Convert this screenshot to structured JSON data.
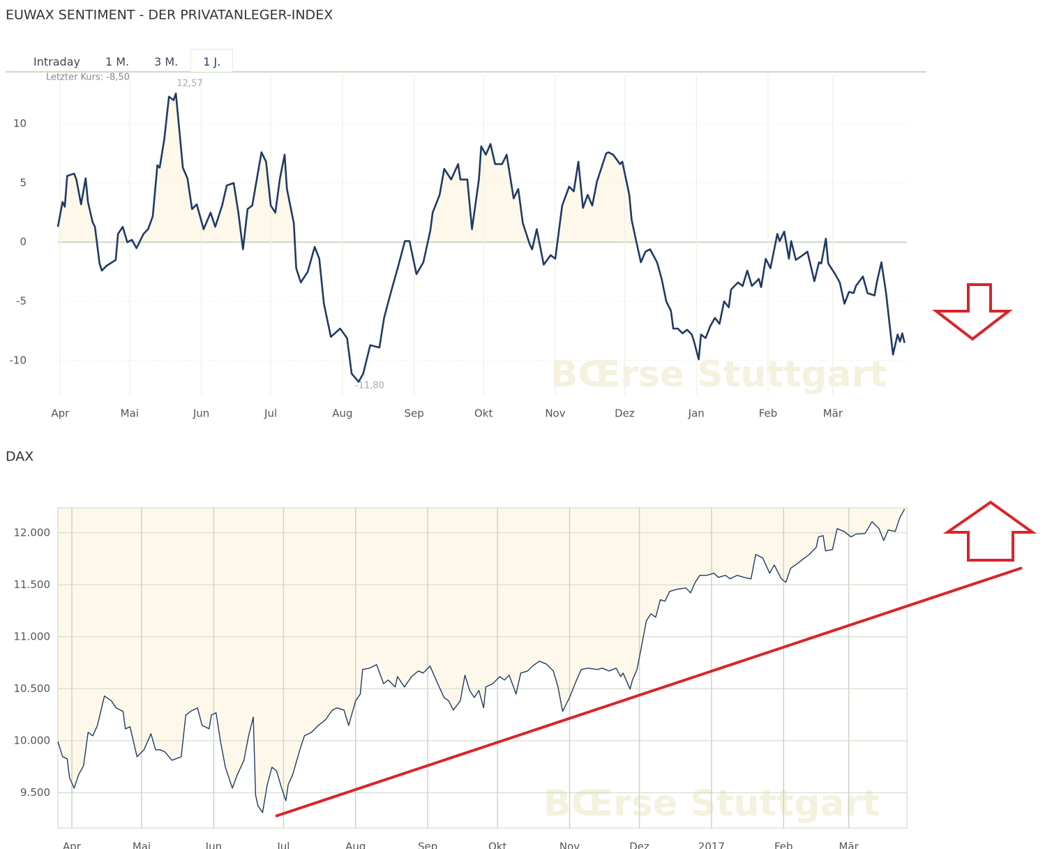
{
  "tabs": [
    "Intraday",
    "1 M.",
    "3 M.",
    "1 J."
  ],
  "watermark": "BŒrse Stuttgart",
  "chart_data": [
    {
      "type": "line",
      "title": "EUWAX SENTIMENT - DER PRIVATANLEGER-INDEX",
      "annotations": [
        "Letzter Kurs: -8,50",
        "12,57",
        "-11,80"
      ],
      "color": "#1f3a64",
      "fill_color": "#fdf8ea",
      "x": [
        -1,
        1,
        2,
        3,
        6,
        7,
        9,
        11,
        12,
        14,
        15,
        17,
        18,
        20,
        24,
        25,
        27,
        29,
        31,
        33,
        36,
        38,
        40,
        42,
        43,
        45,
        47,
        49,
        50,
        52,
        53,
        55,
        57,
        59,
        62,
        65,
        67,
        70,
        72,
        75,
        77,
        79,
        81,
        83,
        87,
        89,
        91,
        93,
        95,
        97,
        98,
        101,
        102,
        104,
        107,
        110,
        112,
        114,
        117,
        121,
        124,
        126,
        129,
        131,
        134,
        138,
        140,
        143,
        146,
        149,
        151,
        154,
        157,
        160,
        161,
        164,
        166,
        169,
        172,
        173,
        176,
        178,
        181,
        182,
        184,
        186,
        188,
        191,
        193,
        196,
        198,
        200,
        203,
        204,
        206,
        209,
        212,
        214,
        217,
        220,
        222,
        224,
        226,
        228,
        230,
        232,
        236,
        237,
        239,
        242,
        243,
        246,
        247,
        249,
        251,
        253,
        255,
        258,
        260,
        262,
        264,
        265,
        267,
        269,
        271,
        273,
        274,
        276,
        277,
        279,
        281,
        283,
        285,
        287,
        289,
        290,
        293,
        295,
        297,
        299,
        302,
        303,
        305,
        307,
        310,
        311,
        313,
        315,
        316,
        318,
        321,
        323,
        326,
        328,
        329,
        331,
        332,
        335,
        337,
        339,
        341,
        343,
        344,
        347,
        349,
        352,
        353,
        355,
        357,
        360,
        362,
        363,
        364,
        365
      ],
      "values": [
        1.3,
        3.4,
        3.0,
        5.6,
        5.8,
        5.3,
        3.2,
        5.4,
        3.4,
        1.7,
        1.3,
        -1.8,
        -2.4,
        -2.0,
        -1.5,
        0.7,
        1.3,
        0.0,
        0.2,
        -0.5,
        0.7,
        1.1,
        2.2,
        6.5,
        6.3,
        8.7,
        12.3,
        12.0,
        12.57,
        8.4,
        6.3,
        5.4,
        2.8,
        3.2,
        1.1,
        2.5,
        1.3,
        3.1,
        4.8,
        5.0,
        2.5,
        -0.6,
        2.8,
        3.1,
        7.6,
        6.8,
        3.1,
        2.5,
        5.4,
        7.4,
        4.5,
        1.6,
        -2.2,
        -3.4,
        -2.5,
        -0.4,
        -1.4,
        -5.2,
        -8.0,
        -7.3,
        -8.1,
        -11.1,
        -11.8,
        -11.1,
        -8.7,
        -8.9,
        -6.4,
        -4.2,
        -2.1,
        0.1,
        0.1,
        -2.7,
        -1.7,
        1.0,
        2.5,
        4.0,
        6.2,
        5.3,
        6.6,
        5.3,
        5.3,
        1.1,
        5.3,
        8.1,
        7.4,
        8.3,
        6.6,
        6.6,
        7.4,
        3.7,
        4.5,
        1.6,
        -0.2,
        -0.6,
        1.1,
        -1.9,
        -1.1,
        -1.4,
        3.1,
        4.7,
        4.3,
        6.8,
        2.9,
        4.0,
        3.1,
        5.1,
        7.5,
        7.6,
        7.4,
        6.6,
        6.8,
        4.0,
        1.9,
        0.1,
        -1.7,
        -0.8,
        -0.6,
        -1.7,
        -3.1,
        -5.0,
        -5.8,
        -7.3,
        -7.3,
        -7.7,
        -7.4,
        -7.8,
        -8.4,
        -9.9,
        -7.8,
        -8.1,
        -7.1,
        -6.4,
        -6.9,
        -5.0,
        -5.5,
        -4.0,
        -3.4,
        -3.7,
        -2.4,
        -3.7,
        -3.1,
        -3.8,
        -1.4,
        -2.2,
        0.7,
        0.1,
        0.9,
        -1.4,
        0.1,
        -1.5,
        -1.1,
        -0.8,
        -3.3,
        -1.7,
        -1.8,
        0.3,
        -1.8,
        -2.7,
        -3.4,
        -5.2,
        -4.2,
        -4.3,
        -3.7,
        -2.9,
        -4.3,
        -4.5,
        -3.4,
        -1.7,
        -4.3,
        -9.5,
        -7.8,
        -8.4,
        -7.7,
        -8.5
      ],
      "xlim": [
        -1,
        366
      ],
      "xticks": [
        {
          "value": 0,
          "label": "Apr"
        },
        {
          "value": 30,
          "label": "Mai"
        },
        {
          "value": 61,
          "label": "Jun"
        },
        {
          "value": 91,
          "label": "Jul"
        },
        {
          "value": 122,
          "label": "Aug"
        },
        {
          "value": 153,
          "label": "Sep"
        },
        {
          "value": 183,
          "label": "Okt"
        },
        {
          "value": 214,
          "label": "Nov"
        },
        {
          "value": 244,
          "label": "Dez"
        },
        {
          "value": 275,
          "label": "Jan"
        },
        {
          "value": 306,
          "label": "Feb"
        },
        {
          "value": 334,
          "label": "Mär"
        }
      ],
      "ylim": [
        -12.9,
        14.1
      ],
      "yticks": [
        -10,
        -5,
        0,
        5,
        10
      ],
      "grid": true
    },
    {
      "type": "line",
      "title": "DAX",
      "color": "#1f3a64",
      "fill_color": "#fdf8ea",
      "x": [
        -6,
        -4,
        -2,
        -1,
        1,
        3,
        5,
        7,
        9,
        11,
        14,
        17,
        19,
        22,
        23,
        25,
        28,
        31,
        34,
        36,
        38,
        40,
        43,
        47,
        49,
        51,
        54,
        56,
        59,
        60,
        62,
        64,
        66,
        69,
        71,
        74,
        76,
        78,
        79,
        80,
        82,
        84,
        86,
        88,
        90,
        92,
        93,
        95,
        98,
        100,
        103,
        106,
        109,
        112,
        114,
        117,
        119,
        122,
        124,
        125,
        128,
        131,
        134,
        136,
        139,
        140,
        143,
        146,
        149,
        151,
        154,
        157,
        160,
        162,
        164,
        167,
        169,
        171,
        173,
        175,
        177,
        178,
        181,
        184,
        186,
        188,
        191,
        193,
        196,
        198,
        201,
        204,
        207,
        209,
        211,
        214,
        217,
        219,
        222,
        226,
        228,
        231,
        234,
        236,
        237,
        240,
        241,
        243,
        245,
        247,
        249,
        251,
        253,
        255,
        257,
        260,
        264,
        266,
        268,
        270,
        273,
        276,
        278,
        281,
        283,
        286,
        289,
        292,
        294,
        297,
        300,
        302,
        305,
        307,
        309,
        312,
        315,
        317,
        320,
        321,
        323,
        324,
        327,
        329,
        332,
        335,
        337,
        341,
        344,
        347,
        349,
        351,
        354,
        356,
        358
      ],
      "values": [
        9993,
        9846,
        9826,
        9644,
        9544,
        9678,
        9758,
        10081,
        10047,
        10148,
        10430,
        10383,
        10316,
        10282,
        10114,
        10134,
        9846,
        9913,
        10067,
        9913,
        9913,
        9893,
        9812,
        9846,
        10248,
        10282,
        10316,
        10148,
        10114,
        10248,
        10269,
        9980,
        9745,
        9544,
        9665,
        9812,
        10047,
        10228,
        9477,
        9376,
        9309,
        9577,
        9745,
        9711,
        9557,
        9423,
        9577,
        9678,
        9913,
        10047,
        10081,
        10148,
        10201,
        10295,
        10316,
        10295,
        10148,
        10383,
        10450,
        10685,
        10698,
        10732,
        10550,
        10584,
        10517,
        10617,
        10517,
        10617,
        10671,
        10651,
        10718,
        10564,
        10416,
        10383,
        10295,
        10383,
        10631,
        10483,
        10416,
        10483,
        10316,
        10517,
        10550,
        10617,
        10584,
        10631,
        10450,
        10651,
        10671,
        10718,
        10765,
        10738,
        10671,
        10517,
        10282,
        10416,
        10584,
        10685,
        10698,
        10685,
        10698,
        10671,
        10698,
        10617,
        10651,
        10497,
        10584,
        10685,
        10919,
        11154,
        11221,
        11188,
        11356,
        11342,
        11436,
        11456,
        11470,
        11423,
        11524,
        11591,
        11591,
        11611,
        11571,
        11591,
        11557,
        11591,
        11571,
        11557,
        11792,
        11758,
        11611,
        11691,
        11557,
        11524,
        11658,
        11705,
        11758,
        11792,
        11859,
        11960,
        11973,
        11826,
        11839,
        12040,
        12013,
        11960,
        11987,
        11993,
        12107,
        12040,
        11926,
        12027,
        12013,
        12148,
        12228
      ],
      "xlim": [
        -6,
        359
      ],
      "xticks": [
        {
          "value": 0,
          "label": "Apr"
        },
        {
          "value": 30,
          "label": "Mai"
        },
        {
          "value": 61,
          "label": "Jun"
        },
        {
          "value": 91,
          "label": "Jul"
        },
        {
          "value": 122,
          "label": "Aug"
        },
        {
          "value": 153,
          "label": "Sep"
        },
        {
          "value": 183,
          "label": "Okt"
        },
        {
          "value": 214,
          "label": "Nov"
        },
        {
          "value": 244,
          "label": "Dez"
        },
        {
          "value": 275,
          "label": "2017"
        },
        {
          "value": 306,
          "label": "Feb"
        },
        {
          "value": 334,
          "label": "Mär"
        }
      ],
      "ylim": [
        9160,
        12240
      ],
      "yticks": [
        {
          "value": 9500,
          "label": "9.500"
        },
        {
          "value": 10000,
          "label": "10.000"
        },
        {
          "value": 10500,
          "label": "10.500"
        },
        {
          "value": 11000,
          "label": "11.000"
        },
        {
          "value": 11500,
          "label": "11.500"
        },
        {
          "value": 12000,
          "label": "12.000"
        }
      ],
      "grid": true
    }
  ]
}
